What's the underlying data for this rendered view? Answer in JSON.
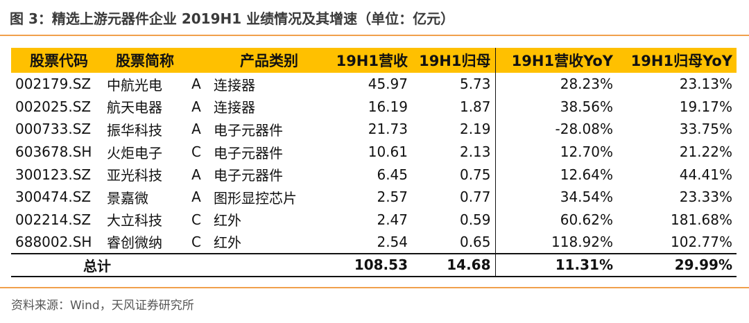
{
  "title": "图 3：精选上游元器件企业 2019H1 业绩情况及其增速（单位：亿元）",
  "headers": [
    "股票代码",
    "股票简称",
    "",
    "产品类别",
    "19H1营收",
    "19H1归母",
    "19H1营收YoY",
    "19H1归母YoY"
  ],
  "rows": [
    [
      "002179.SZ",
      "中航光电",
      "A",
      "连接器",
      "45.97",
      "5.73",
      "28.23%",
      "23.13%"
    ],
    [
      "002025.SZ",
      "航天电器",
      "A",
      "连接器",
      "16.19",
      "1.87",
      "38.56%",
      "19.17%"
    ],
    [
      "000733.SZ",
      "振华科技",
      "A",
      "电子元器件",
      "21.73",
      "2.19",
      "-28.08%",
      "33.75%"
    ],
    [
      "603678.SH",
      "火炬电子",
      "C",
      "电子元器件",
      "10.61",
      "2.13",
      "12.70%",
      "21.22%"
    ],
    [
      "300123.SZ",
      "亚光科技",
      "A",
      "电子元器件",
      "6.45",
      "0.75",
      "12.64%",
      "44.41%"
    ],
    [
      "300474.SZ",
      "景嘉微",
      "A",
      "图形显控芯片",
      "2.57",
      "0.77",
      "34.54%",
      "23.33%"
    ],
    [
      "002214.SZ",
      "大立科技",
      "C",
      "红外",
      "2.47",
      "0.59",
      "60.62%",
      "181.68%"
    ],
    [
      "688002.SH",
      "睿创微纳",
      "C",
      "红外",
      "2.54",
      "0.65",
      "118.92%",
      "102.77%"
    ]
  ],
  "total": {
    "label": "总计",
    "revenue": "108.53",
    "net_profit": "14.68",
    "revenue_yoy": "11.31%",
    "net_profit_yoy": "29.99%"
  },
  "source": "资料来源：Wind，天风证券研究所",
  "colors": {
    "header_bg": "#ffc000",
    "rule": "#f0a04b"
  }
}
